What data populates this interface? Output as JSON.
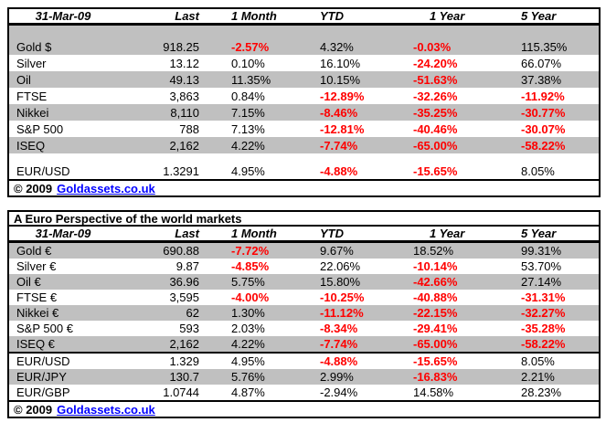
{
  "colors": {
    "negative_red": "#ff0000",
    "row_shade_gray": "#c0c0c0",
    "link_blue": "#0000ff",
    "border_black": "#000000"
  },
  "tables": [
    {
      "id": "usd-markets",
      "columns": [
        "31-Mar-09",
        "Last",
        "1 Month",
        "YTD",
        "1 Year",
        "5 Year"
      ],
      "rows": [
        {
          "spacer": true,
          "shade": true,
          "height": 14
        },
        {
          "shade": true,
          "cells": [
            {
              "t": "Gold $"
            },
            {
              "t": "918.25"
            },
            {
              "t": "-2.57%",
              "red": true
            },
            {
              "t": "4.32%"
            },
            {
              "t": "-0.03%",
              "red": true
            },
            {
              "t": "115.35%"
            }
          ]
        },
        {
          "shade": false,
          "cells": [
            {
              "t": "Silver"
            },
            {
              "t": "13.12"
            },
            {
              "t": "0.10%"
            },
            {
              "t": "16.10%"
            },
            {
              "t": "-24.20%",
              "red": true
            },
            {
              "t": "66.07%"
            }
          ]
        },
        {
          "shade": true,
          "cells": [
            {
              "t": "Oil"
            },
            {
              "t": "49.13"
            },
            {
              "t": "11.35%"
            },
            {
              "t": "10.15%"
            },
            {
              "t": "-51.63%",
              "red": true
            },
            {
              "t": "37.38%"
            }
          ]
        },
        {
          "shade": false,
          "cells": [
            {
              "t": "FTSE"
            },
            {
              "t": "3,863"
            },
            {
              "t": "0.84%"
            },
            {
              "t": "-12.89%",
              "red": true
            },
            {
              "t": "-32.26%",
              "red": true
            },
            {
              "t": "-11.92%",
              "red": true
            }
          ]
        },
        {
          "shade": true,
          "cells": [
            {
              "t": "Nikkei"
            },
            {
              "t": "8,110"
            },
            {
              "t": "7.15%"
            },
            {
              "t": "-8.46%",
              "red": true
            },
            {
              "t": "-35.25%",
              "red": true
            },
            {
              "t": "-30.77%",
              "red": true
            }
          ]
        },
        {
          "shade": false,
          "cells": [
            {
              "t": "S&P 500"
            },
            {
              "t": "788"
            },
            {
              "t": "7.13%"
            },
            {
              "t": "-12.81%",
              "red": true
            },
            {
              "t": "-40.46%",
              "red": true
            },
            {
              "t": "-30.07%",
              "red": true
            }
          ]
        },
        {
          "shade": true,
          "cells": [
            {
              "t": "ISEQ"
            },
            {
              "t": "2,162"
            },
            {
              "t": "4.22%"
            },
            {
              "t": "-7.74%",
              "red": true
            },
            {
              "t": "-65.00%",
              "red": true
            },
            {
              "t": "-58.22%",
              "red": true
            }
          ]
        },
        {
          "spacer": true,
          "shade": false,
          "height": 10
        },
        {
          "shade": false,
          "cells": [
            {
              "t": "EUR/USD"
            },
            {
              "t": "1.3291"
            },
            {
              "t": "4.95%"
            },
            {
              "t": "-4.88%",
              "red": true
            },
            {
              "t": "-15.65%",
              "red": true
            },
            {
              "t": "8.05%"
            }
          ]
        }
      ],
      "footer": {
        "copyright": "© 2009",
        "link": "Goldassets.co.uk"
      }
    },
    {
      "id": "euro-markets",
      "title": "A Euro Perspective of the world markets",
      "columns": [
        "31-Mar-09",
        "Last",
        "1 Month",
        "YTD",
        "1 Year",
        "5 Year"
      ],
      "rows": [
        {
          "shade": true,
          "cells": [
            {
              "t": "Gold €"
            },
            {
              "t": "690.88"
            },
            {
              "t": "-7.72%",
              "red": true
            },
            {
              "t": "9.67%"
            },
            {
              "t": "18.52%"
            },
            {
              "t": "99.31%"
            }
          ]
        },
        {
          "shade": false,
          "cells": [
            {
              "t": "Silver €"
            },
            {
              "t": "9.87"
            },
            {
              "t": "-4.85%",
              "red": true
            },
            {
              "t": "22.06%"
            },
            {
              "t": "-10.14%",
              "red": true
            },
            {
              "t": "53.70%"
            }
          ]
        },
        {
          "shade": true,
          "cells": [
            {
              "t": "Oil €"
            },
            {
              "t": "36.96"
            },
            {
              "t": "5.75%"
            },
            {
              "t": "15.80%"
            },
            {
              "t": "-42.66%",
              "red": true
            },
            {
              "t": "27.14%"
            }
          ]
        },
        {
          "shade": false,
          "cells": [
            {
              "t": "FTSE €"
            },
            {
              "t": "3,595"
            },
            {
              "t": "-4.00%",
              "red": true
            },
            {
              "t": "-10.25%",
              "red": true
            },
            {
              "t": "-40.88%",
              "red": true
            },
            {
              "t": "-31.31%",
              "red": true
            }
          ]
        },
        {
          "shade": true,
          "cells": [
            {
              "t": "Nikkei €"
            },
            {
              "t": "62"
            },
            {
              "t": "1.30%"
            },
            {
              "t": "-11.12%",
              "red": true
            },
            {
              "t": "-22.15%",
              "red": true
            },
            {
              "t": "-32.27%",
              "red": true
            }
          ]
        },
        {
          "shade": false,
          "cells": [
            {
              "t": "S&P 500 €"
            },
            {
              "t": "593"
            },
            {
              "t": "2.03%"
            },
            {
              "t": "-8.34%",
              "red": true
            },
            {
              "t": "-29.41%",
              "red": true
            },
            {
              "t": "-35.28%",
              "red": true
            }
          ]
        },
        {
          "shade": true,
          "cells": [
            {
              "t": "ISEQ €"
            },
            {
              "t": "2,162"
            },
            {
              "t": "4.22%"
            },
            {
              "t": "-7.74%",
              "red": true
            },
            {
              "t": "-65.00%",
              "red": true
            },
            {
              "t": "-58.22%",
              "red": true
            }
          ]
        },
        {
          "divider": true
        },
        {
          "shade": false,
          "cells": [
            {
              "t": "EUR/USD"
            },
            {
              "t": "1.329"
            },
            {
              "t": "4.95%"
            },
            {
              "t": "-4.88%",
              "red": true
            },
            {
              "t": "-15.65%",
              "red": true
            },
            {
              "t": "8.05%"
            }
          ]
        },
        {
          "shade": true,
          "cells": [
            {
              "t": "EUR/JPY"
            },
            {
              "t": "130.7"
            },
            {
              "t": "5.76%"
            },
            {
              "t": "2.99%"
            },
            {
              "t": "-16.83%",
              "red": true
            },
            {
              "t": "2.21%"
            }
          ]
        },
        {
          "shade": false,
          "cells": [
            {
              "t": "EUR/GBP"
            },
            {
              "t": "1.0744"
            },
            {
              "t": "4.87%"
            },
            {
              "t": "-2.94%"
            },
            {
              "t": "14.58%"
            },
            {
              "t": "28.23%"
            }
          ]
        }
      ],
      "footer": {
        "copyright": "© 2009",
        "link": "Goldassets.co.uk"
      }
    }
  ]
}
